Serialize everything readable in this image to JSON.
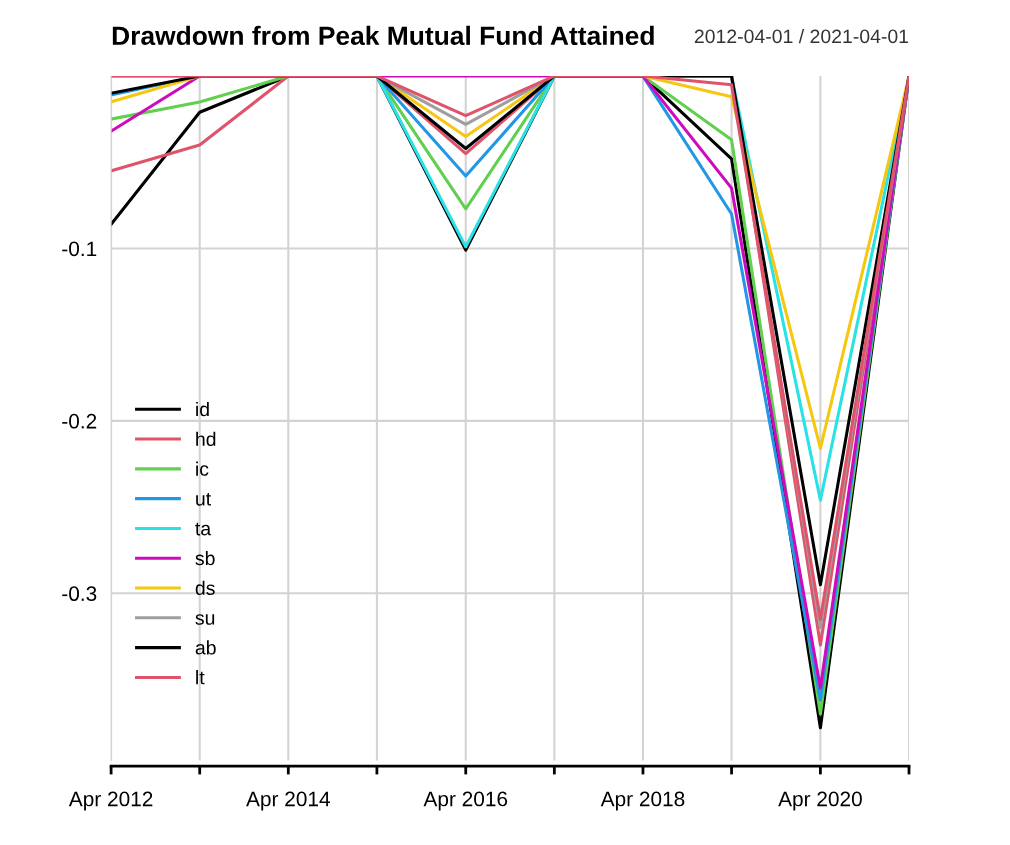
{
  "chart_data": {
    "type": "line",
    "title": "Drawdown from Peak Mutual Fund Attained",
    "subtitle": "2012-04-01 / 2021-04-01",
    "x": [
      "2012-04",
      "2013-04",
      "2014-04",
      "2015-04",
      "2016-04",
      "2017-04",
      "2018-04",
      "2019-04",
      "2020-04",
      "2021-04"
    ],
    "series": [
      {
        "name": "id",
        "color": "#000000",
        "values": [
          -0.086,
          -0.021,
          0,
          0,
          -0.101,
          0,
          0,
          -0.048,
          -0.378,
          0
        ]
      },
      {
        "name": "hd",
        "color": "#df536b",
        "values": [
          -0.055,
          -0.04,
          0,
          0,
          -0.045,
          0,
          0,
          0,
          -0.33,
          0
        ]
      },
      {
        "name": "ic",
        "color": "#61d04f",
        "values": [
          -0.025,
          -0.015,
          0,
          0,
          -0.077,
          0,
          0,
          -0.037,
          -0.37,
          0
        ]
      },
      {
        "name": "ut",
        "color": "#2297e6",
        "values": [
          -0.011,
          0,
          0,
          0,
          -0.058,
          0,
          0,
          -0.08,
          -0.362,
          0
        ]
      },
      {
        "name": "ta",
        "color": "#28e2e5",
        "values": [
          null,
          null,
          0,
          0,
          -0.099,
          0,
          0,
          0,
          -0.246,
          0
        ]
      },
      {
        "name": "sb",
        "color": "#cd0bbc",
        "values": [
          -0.032,
          0,
          0,
          0,
          0,
          0,
          0,
          -0.065,
          -0.355,
          0
        ]
      },
      {
        "name": "ds",
        "color": "#f5c710",
        "values": [
          -0.015,
          0,
          0,
          0,
          -0.035,
          0,
          0,
          -0.012,
          -0.216,
          0
        ]
      },
      {
        "name": "su",
        "color": "#9e9e9e",
        "values": [
          0,
          0,
          0,
          0,
          -0.028,
          0,
          0,
          0,
          -0.32,
          0
        ]
      },
      {
        "name": "ab",
        "color": "#000000",
        "values": [
          -0.01,
          0,
          0,
          0,
          -0.042,
          0,
          0,
          0,
          -0.295,
          0
        ]
      },
      {
        "name": "lt",
        "color": "#df536b",
        "values": [
          0,
          0,
          0,
          0,
          -0.023,
          0,
          0,
          -0.005,
          -0.315,
          0
        ]
      }
    ],
    "xlim": [
      "2012-04",
      "2021-04"
    ],
    "ylim": [
      -0.397,
      0
    ],
    "yticks": [
      -0.1,
      -0.2,
      -0.3
    ],
    "xticks": [
      {
        "value": "2012-04",
        "label": "Apr 2012"
      },
      {
        "value": "2013-04",
        "label": null
      },
      {
        "value": "2014-04",
        "label": "Apr 2014"
      },
      {
        "value": "2015-04",
        "label": null
      },
      {
        "value": "2016-04",
        "label": "Apr 2016"
      },
      {
        "value": "2017-04",
        "label": null
      },
      {
        "value": "2018-04",
        "label": "Apr 2018"
      },
      {
        "value": "2019-04",
        "label": null
      },
      {
        "value": "2020-04",
        "label": "Apr 2020"
      },
      {
        "value": "2021-04",
        "label": null
      }
    ],
    "grid": true,
    "legend": "bottom left",
    "line_style": "solid",
    "marker": "none"
  }
}
